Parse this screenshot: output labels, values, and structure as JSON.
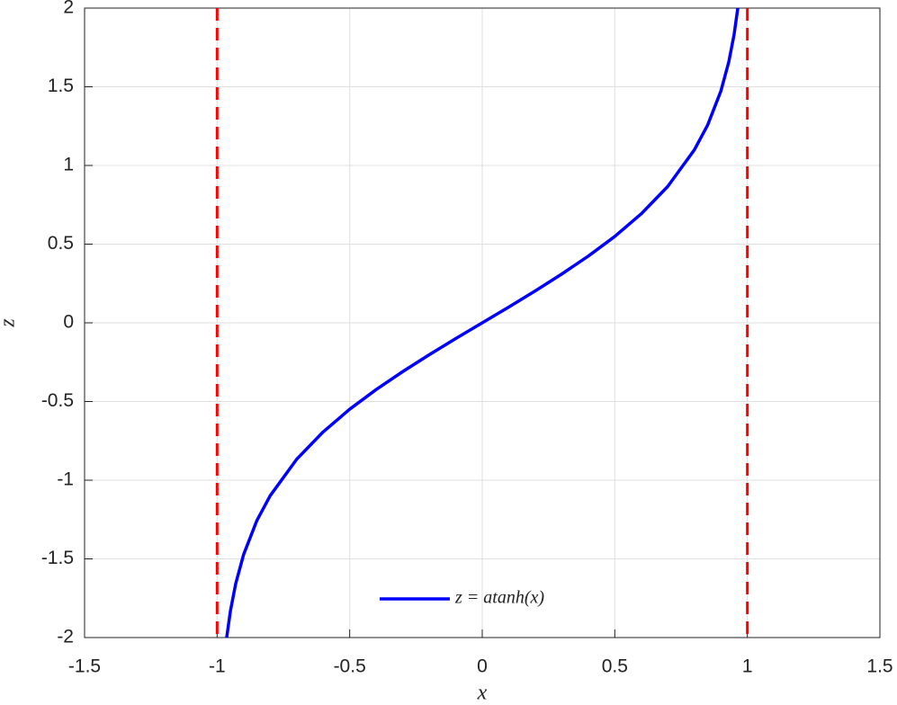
{
  "chart_data": {
    "type": "line",
    "x": [
      -0.964,
      -0.95,
      -0.93,
      -0.9,
      -0.85,
      -0.8,
      -0.7,
      -0.6,
      -0.5,
      -0.4,
      -0.3,
      -0.2,
      -0.1,
      0,
      0.1,
      0.2,
      0.3,
      0.4,
      0.5,
      0.6,
      0.7,
      0.8,
      0.85,
      0.9,
      0.93,
      0.95,
      0.964
    ],
    "series": [
      {
        "name": "z = atanh(x)",
        "color": "#0000ff",
        "values": [
          -2.0,
          -1.832,
          -1.658,
          -1.472,
          -1.256,
          -1.099,
          -0.867,
          -0.693,
          -0.549,
          -0.424,
          -0.31,
          -0.203,
          -0.1,
          0,
          0.1,
          0.203,
          0.31,
          0.424,
          0.549,
          0.693,
          0.867,
          1.099,
          1.256,
          1.472,
          1.658,
          1.832,
          2.0
        ]
      }
    ],
    "vlines": [
      -1,
      1
    ],
    "vline_color": "#ff0000",
    "xlabel": "x",
    "ylabel": "z",
    "xlim": [
      -1.5,
      1.5
    ],
    "xticks": [
      -1.5,
      -1,
      -0.5,
      0,
      0.5,
      1,
      1.5
    ],
    "ylim": [
      -2,
      2
    ],
    "yticks": [
      -2,
      -1.5,
      -1,
      -0.5,
      0,
      0.5,
      1,
      1.5,
      2
    ],
    "grid": true,
    "legend": "lower center"
  }
}
